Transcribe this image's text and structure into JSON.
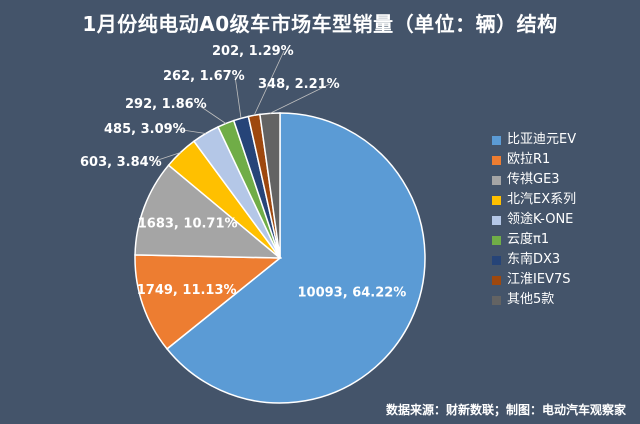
{
  "chart_data": {
    "type": "pie",
    "title": "1月份纯电动A0级车市场车型销量（单位：辆）结构",
    "slices": [
      {
        "name": "比亚迪元EV",
        "value": 10093,
        "percent": "64.22%",
        "color": "#5b9bd5"
      },
      {
        "name": "欧拉R1",
        "value": 1749,
        "percent": "11.13%",
        "color": "#ed7d31"
      },
      {
        "name": "传祺GE3",
        "value": 1683,
        "percent": "10.71%",
        "color": "#a5a5a5"
      },
      {
        "name": "北汽EX系列",
        "value": 603,
        "percent": "3.84%",
        "color": "#ffc000"
      },
      {
        "name": "领途K-ONE",
        "value": 485,
        "percent": "3.09%",
        "color": "#b4c7e7"
      },
      {
        "name": "云度π1",
        "value": 292,
        "percent": "1.86%",
        "color": "#70ad47"
      },
      {
        "name": "东南DX3",
        "value": 262,
        "percent": "1.67%",
        "color": "#264478"
      },
      {
        "name": "江淮IEV7S",
        "value": 202,
        "percent": "1.29%",
        "color": "#9e480e"
      },
      {
        "name": "其他5款",
        "value": 348,
        "percent": "2.21%",
        "color": "#636363"
      }
    ],
    "legend_position": "right"
  },
  "source_text": "数据来源：财新数联；制图：电动汽车观察家"
}
